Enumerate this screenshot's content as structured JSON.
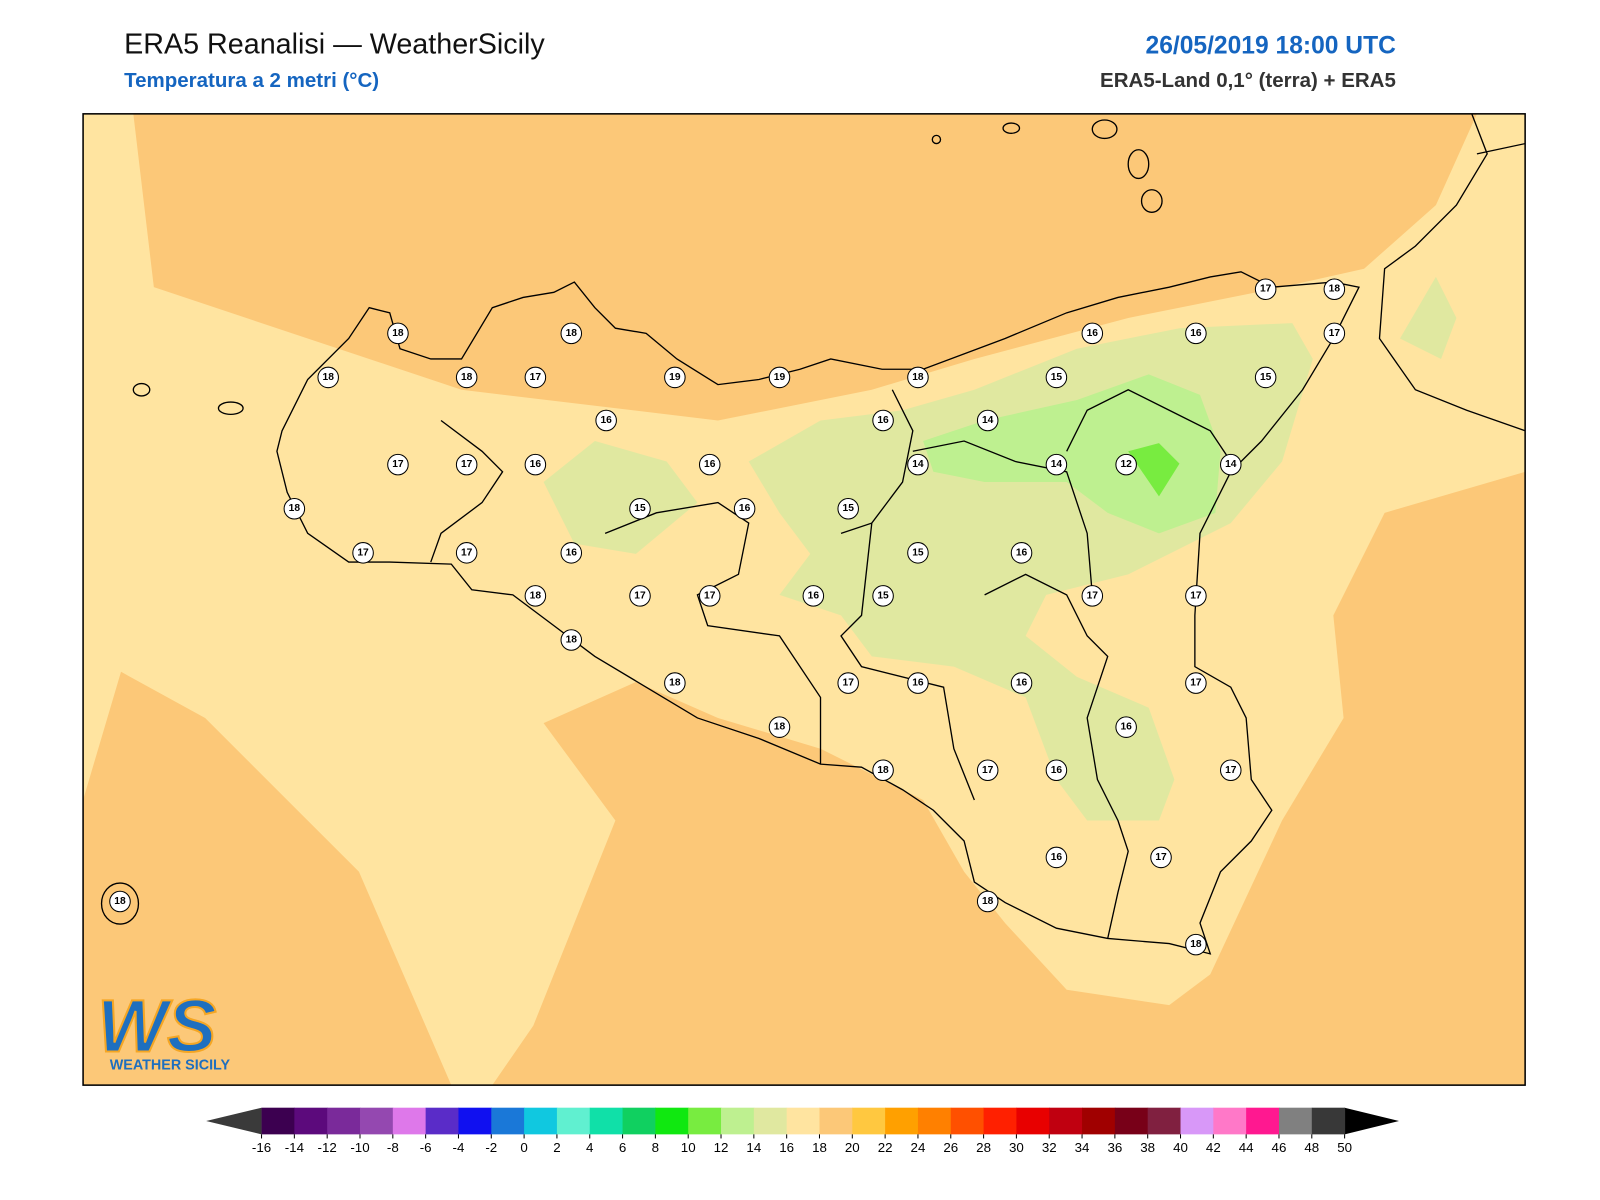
{
  "header": {
    "title": "ERA5 Reanalisi — WeatherSicily",
    "subtitle": "Temperatura a 2 metri (°C)",
    "date": "26/05/2019 18:00 UTC",
    "source": "ERA5-Land 0,1° (terra) + ERA5"
  },
  "stations": [
    18,
    18,
    18,
    18,
    17,
    19,
    19,
    18,
    15,
    16,
    16,
    17,
    18,
    17,
    15,
    16,
    16,
    14,
    17,
    17,
    16,
    16,
    14,
    14,
    12,
    14,
    18,
    15,
    16,
    15,
    17,
    17,
    16,
    15,
    16,
    18,
    17,
    17,
    16,
    15,
    17,
    17,
    18,
    18,
    17,
    16,
    16,
    17,
    16,
    18,
    18,
    17,
    16,
    17,
    16,
    17,
    18,
    18,
    18
  ],
  "colorbar": {
    "ticks": [
      -16,
      -14,
      -12,
      -10,
      -8,
      -6,
      -4,
      -2,
      0,
      2,
      4,
      6,
      8,
      10,
      12,
      14,
      16,
      18,
      20,
      22,
      24,
      26,
      28,
      30,
      32,
      34,
      36,
      38,
      40,
      42,
      44,
      46,
      48,
      50
    ],
    "colors": [
      "#3c0050",
      "#5c0a7c",
      "#7a2a9a",
      "#9448b0",
      "#de78ea",
      "#5a2cc8",
      "#1010f0",
      "#1a78d8",
      "#10c8e0",
      "#60f0d0",
      "#10e0a8",
      "#10d060",
      "#10e810",
      "#78ec40",
      "#bef090",
      "#e0e8a0",
      "#ffe4a0",
      "#fcc878",
      "#ffc840",
      "#ffa000",
      "#ff8000",
      "#ff5000",
      "#ff2000",
      "#e80000",
      "#c00010",
      "#a00000",
      "#780018",
      "#802040",
      "#d898f8",
      "#ff78c8",
      "#ff1890",
      "#808080",
      "#383838"
    ],
    "under_color": "#3a3a3a",
    "over_color": "#000000"
  },
  "logo": {
    "mark": "WS",
    "text": "WEATHER SICILY"
  }
}
